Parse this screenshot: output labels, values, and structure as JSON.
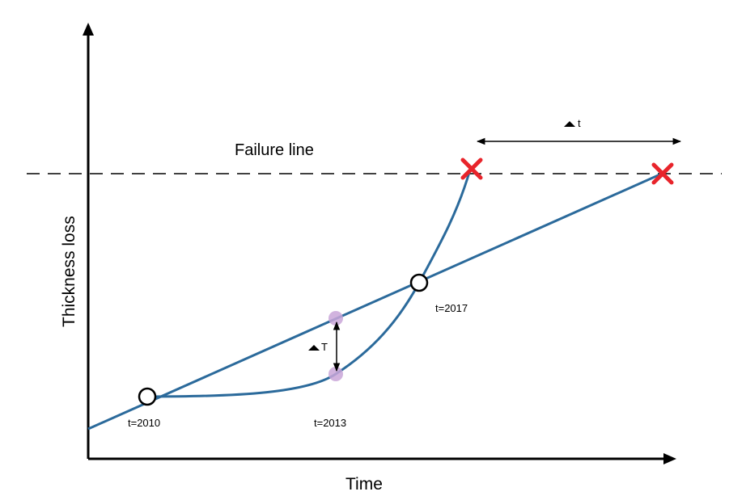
{
  "labels": {
    "x_axis": "Time",
    "y_axis": "Thickness loss",
    "failure_line": "Failure line",
    "delta_t_symbol": "t",
    "delta_T_symbol": "T",
    "t1": "t=2010",
    "t2": "t=2013",
    "t3": "t=2017"
  },
  "colors": {
    "curve": "#2b6a9b",
    "failure_marker": "#e8242b",
    "measurement_dot": "#c9a6d8",
    "axis": "#000000"
  }
}
